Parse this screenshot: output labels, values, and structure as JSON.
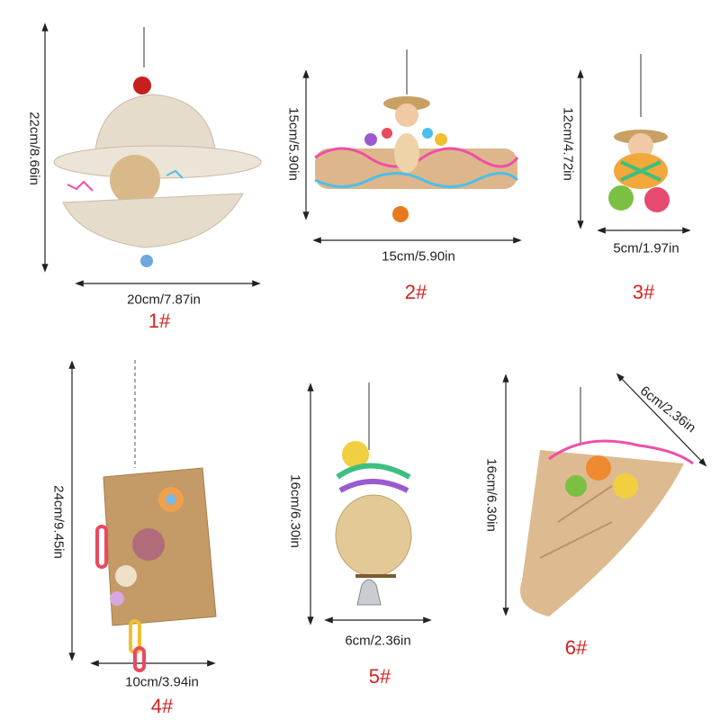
{
  "products": [
    {
      "number": "1#",
      "height": "22cm/8.66in",
      "width": "20cm/7.87in"
    },
    {
      "number": "2#",
      "height": "15cm/5.90in",
      "width": "15cm/5.90in"
    },
    {
      "number": "3#",
      "height": "12cm/4.72in",
      "width": "5cm/1.97in"
    },
    {
      "number": "4#",
      "height": "24cm/9.45in",
      "width": "10cm/3.94in"
    },
    {
      "number": "5#",
      "height": "16cm/6.30in",
      "width": "6cm/2.36in"
    },
    {
      "number": "6#",
      "height": "16cm/6.30in",
      "width": "6cm/2.36in"
    }
  ],
  "colors": {
    "label_number": "#d42020",
    "dimension_text": "#222222",
    "arrow": "#222222"
  }
}
